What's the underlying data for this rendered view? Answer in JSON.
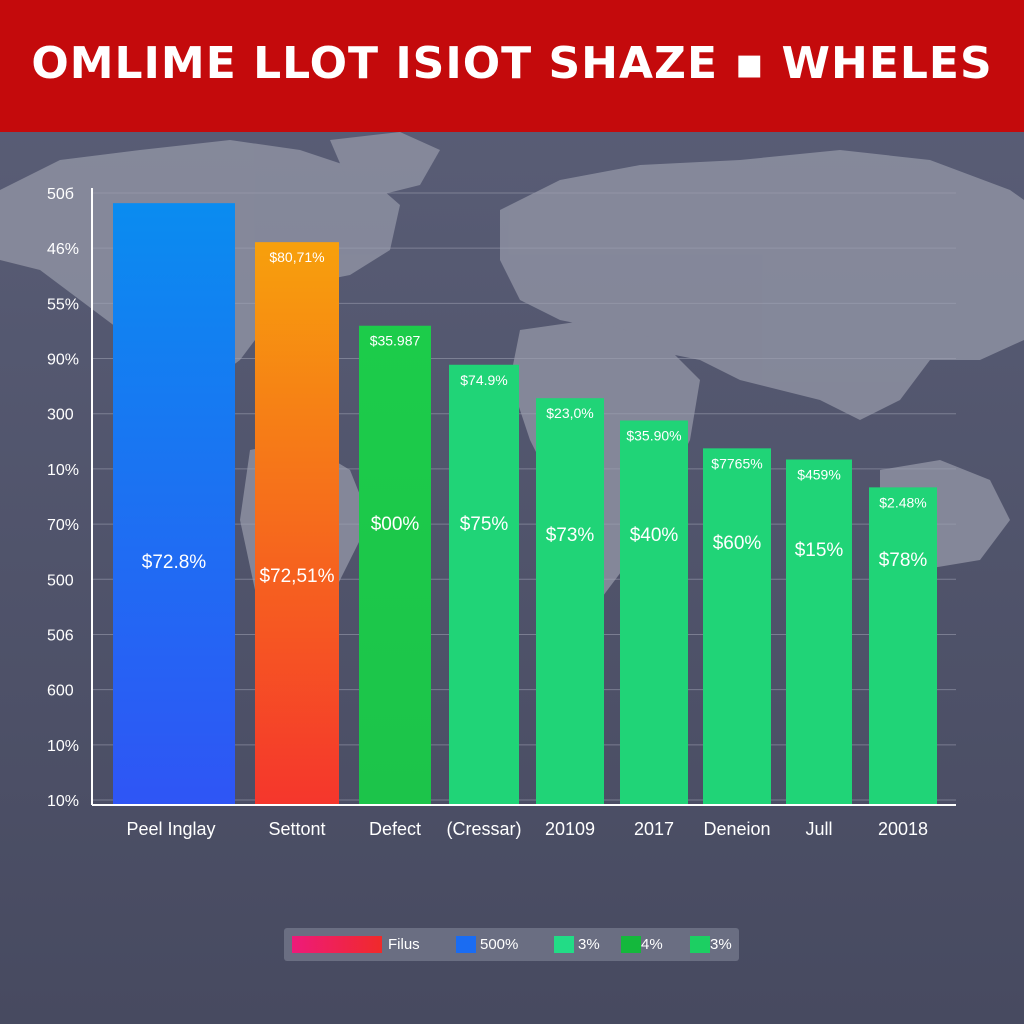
{
  "header": {
    "title": "OMLIME LLOT ISIOT SHAZE ▪ WHELES",
    "background_color": "#c40a0c"
  },
  "chart_data": {
    "type": "bar",
    "title": "OMLIME LLOT ISIOT SHAZE ▪ WHELES",
    "xlabel": "",
    "ylabel": "",
    "y_tick_labels": [
      "50б",
      "46%",
      "55%",
      "90%",
      "300",
      "10%",
      "70%",
      "500",
      "506",
      "600",
      "10%",
      "10%"
    ],
    "ylim": [
      0,
      11
    ],
    "grid": true,
    "categories": [
      "Peel Inglay",
      "Settont",
      "Defect",
      "(Cressar)",
      "20109",
      "2017",
      "Deneion",
      "Jull",
      "20018"
    ],
    "values": [
      10.8,
      10.1,
      8.6,
      7.9,
      7.3,
      6.9,
      6.4,
      6.2,
      5.7
    ],
    "top_labels": [
      "",
      "$80,71%",
      "$35.987",
      "$74.9%",
      "$23,0%",
      "$35.90%",
      "$7765%",
      "$459%",
      "$2.48%"
    ],
    "mid_labels": [
      "$72.8%",
      "$72,51%",
      "$00%",
      "$75%",
      "$73%",
      "$40%",
      "$60%",
      "$15%",
      "$78%"
    ],
    "bar_colors": [
      [
        "#0a8cf0",
        "#2f55f5"
      ],
      [
        "#f7a00c",
        "#f5362c"
      ],
      [
        "#1ccc4a",
        "#1cc44a"
      ],
      [
        "#20d477",
        "#20d477"
      ],
      [
        "#20d477",
        "#20d477"
      ],
      [
        "#20d477",
        "#20d477"
      ],
      [
        "#20d477",
        "#20d477"
      ],
      [
        "#20d477",
        "#20d477"
      ],
      [
        "#20d477",
        "#20d477"
      ]
    ]
  },
  "legend": {
    "items": [
      {
        "label": "Filus",
        "color_start": "#ee1a7a",
        "color_end": "#f02a2a"
      },
      {
        "label": "500%",
        "color_start": "#1a6cf2",
        "color_end": "#1a6cf2"
      },
      {
        "label": "3%",
        "color_start": "#22dc86",
        "color_end": "#22dc86"
      },
      {
        "label": "4%",
        "color_start": "#14b83c",
        "color_end": "#14b83c"
      },
      {
        "label": "3%",
        "color_start": "#1ccf62",
        "color_end": "#1ccf62"
      }
    ]
  }
}
